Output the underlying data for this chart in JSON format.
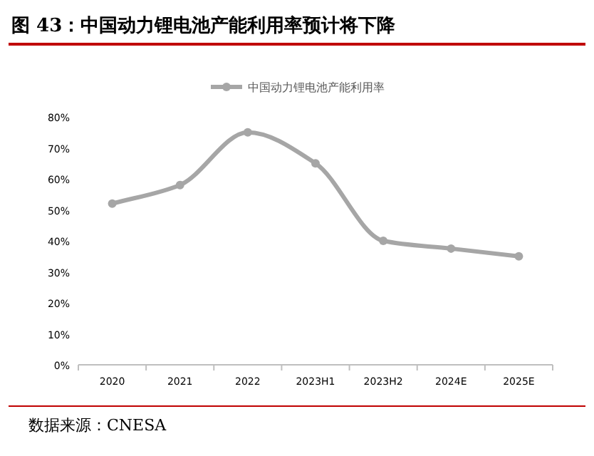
{
  "chart_data": {
    "type": "line",
    "title": "图 43：中国动力锂电池产能利用率预计将下降",
    "categories": [
      "2020",
      "2021",
      "2022",
      "2023H1",
      "2023H2",
      "2024E",
      "2025E"
    ],
    "series": [
      {
        "name": "中国动力锂电池产能利用率",
        "color": "#a6a6a6",
        "values": [
          52,
          58,
          75,
          65,
          40,
          37.5,
          35
        ]
      }
    ],
    "ylim": [
      0,
      80
    ],
    "yticks": [
      {
        "value": 0,
        "label": "0%"
      },
      {
        "value": 10,
        "label": "10%"
      },
      {
        "value": 20,
        "label": "20%"
      },
      {
        "value": 30,
        "label": "30%"
      },
      {
        "value": 40,
        "label": "40%"
      },
      {
        "value": 50,
        "label": "50%"
      },
      {
        "value": 60,
        "label": "60%"
      },
      {
        "value": 70,
        "label": "70%"
      },
      {
        "value": 80,
        "label": "80%"
      }
    ],
    "legend": "top",
    "marker": "circle",
    "grid": false,
    "annotations": [
      "数据来源：CNESA"
    ]
  }
}
